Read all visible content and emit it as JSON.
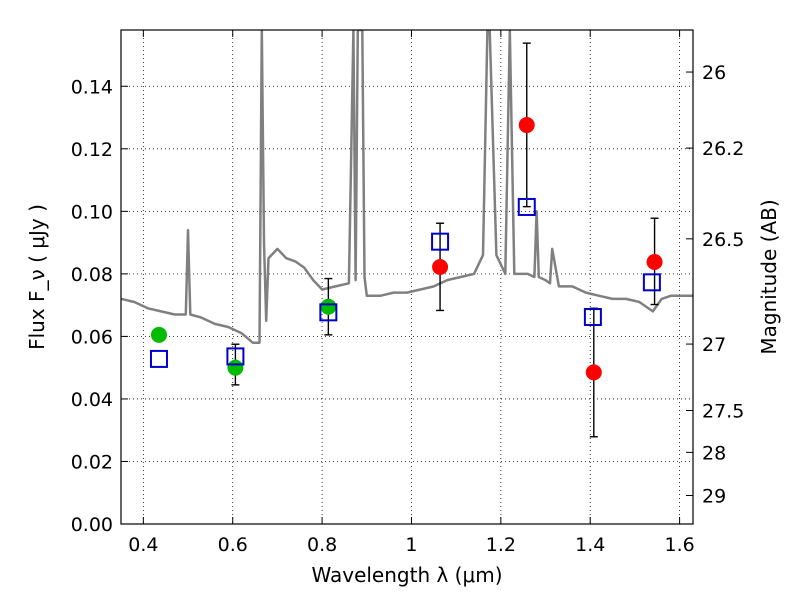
{
  "chart_data": {
    "type": "scatter",
    "xlabel": "Wavelength  λ (μm)",
    "ylabel": "Flux  F_ν  ( μJy )",
    "y2label": "Magnitude (AB)",
    "xlim": [
      0.35,
      1.63
    ],
    "ylim": [
      0.0,
      0.158
    ],
    "grid": true,
    "x_ticks": [
      {
        "value": 0.4,
        "label": "0.4"
      },
      {
        "value": 0.6,
        "label": "0.6"
      },
      {
        "value": 0.8,
        "label": "0.8"
      },
      {
        "value": 1.0,
        "label": "1"
      },
      {
        "value": 1.2,
        "label": "1.2"
      },
      {
        "value": 1.4,
        "label": "1.4"
      },
      {
        "value": 1.6,
        "label": "1.6"
      }
    ],
    "y_ticks": [
      {
        "value": 0.0,
        "label": "0.00"
      },
      {
        "value": 0.02,
        "label": "0.02"
      },
      {
        "value": 0.04,
        "label": "0.04"
      },
      {
        "value": 0.06,
        "label": "0.06"
      },
      {
        "value": 0.08,
        "label": "0.08"
      },
      {
        "value": 0.1,
        "label": "0.10"
      },
      {
        "value": 0.12,
        "label": "0.12"
      },
      {
        "value": 0.14,
        "label": "0.14"
      }
    ],
    "right_ticks": [
      {
        "mag": 26,
        "label": "26"
      },
      {
        "mag": 26.2,
        "label": "26.2"
      },
      {
        "mag": 26.5,
        "label": "26.5"
      },
      {
        "mag": 27,
        "label": "27"
      },
      {
        "mag": 27.5,
        "label": "27.5"
      },
      {
        "mag": 28,
        "label": "28"
      },
      {
        "mag": 29,
        "label": "29"
      }
    ],
    "series": [
      {
        "marker": "circle",
        "color": "#00bb00",
        "points": [
          {
            "x": 0.435,
            "y": 0.0605,
            "yerr_low": 0.0605,
            "yerr_high": 0.0605
          },
          {
            "x": 0.606,
            "y": 0.05,
            "yerr_low": 0.0445,
            "yerr_high": 0.0575
          },
          {
            "x": 0.814,
            "y": 0.0695,
            "yerr_low": 0.0605,
            "yerr_high": 0.0785
          }
        ]
      },
      {
        "marker": "circle",
        "color": "#ff0000",
        "points": [
          {
            "x": 1.064,
            "y": 0.0822,
            "yerr_low": 0.0683,
            "yerr_high": 0.0962
          },
          {
            "x": 1.258,
            "y": 0.1276,
            "yerr_low": 0.1015,
            "yerr_high": 0.1538
          },
          {
            "x": 1.408,
            "y": 0.0485,
            "yerr_low": 0.0279,
            "yerr_high": 0.069
          },
          {
            "x": 1.544,
            "y": 0.0838,
            "yerr_low": 0.0702,
            "yerr_high": 0.0978
          }
        ]
      },
      {
        "marker": "open-square",
        "color": "#0000cc",
        "points": [
          {
            "x": 0.435,
            "y": 0.0528
          },
          {
            "x": 0.606,
            "y": 0.0536
          },
          {
            "x": 0.814,
            "y": 0.0677
          },
          {
            "x": 1.064,
            "y": 0.0903
          },
          {
            "x": 1.258,
            "y": 0.1014
          },
          {
            "x": 1.406,
            "y": 0.0662
          },
          {
            "x": 1.538,
            "y": 0.0773
          }
        ]
      }
    ],
    "spectrum": {
      "color": "#808080",
      "x": [
        0.35,
        0.38,
        0.41,
        0.44,
        0.47,
        0.495,
        0.5,
        0.505,
        0.53,
        0.56,
        0.59,
        0.62,
        0.645,
        0.66,
        0.665,
        0.67,
        0.675,
        0.68,
        0.7,
        0.72,
        0.74,
        0.76,
        0.78,
        0.8,
        0.83,
        0.86,
        0.87,
        0.875,
        0.88,
        0.89,
        0.895,
        0.9,
        0.93,
        0.96,
        0.99,
        1.02,
        1.05,
        1.08,
        1.11,
        1.14,
        1.16,
        1.17,
        1.175,
        1.19,
        1.21,
        1.22,
        1.23,
        1.26,
        1.275,
        1.28,
        1.285,
        1.3,
        1.31,
        1.315,
        1.33,
        1.36,
        1.39,
        1.42,
        1.45,
        1.48,
        1.51,
        1.54,
        1.56,
        1.58,
        1.6,
        1.63
      ],
      "y": [
        0.072,
        0.071,
        0.069,
        0.068,
        0.067,
        0.067,
        0.094,
        0.067,
        0.066,
        0.064,
        0.063,
        0.061,
        0.058,
        0.058,
        0.158,
        0.09,
        0.065,
        0.085,
        0.088,
        0.085,
        0.084,
        0.082,
        0.078,
        0.075,
        0.076,
        0.077,
        0.158,
        0.078,
        0.158,
        0.158,
        0.079,
        0.073,
        0.073,
        0.074,
        0.074,
        0.075,
        0.076,
        0.078,
        0.079,
        0.08,
        0.086,
        0.158,
        0.158,
        0.086,
        0.08,
        0.158,
        0.08,
        0.08,
        0.079,
        0.1,
        0.079,
        0.078,
        0.077,
        0.088,
        0.076,
        0.076,
        0.074,
        0.073,
        0.072,
        0.072,
        0.071,
        0.068,
        0.072,
        0.073,
        0.073,
        0.073
      ]
    }
  }
}
